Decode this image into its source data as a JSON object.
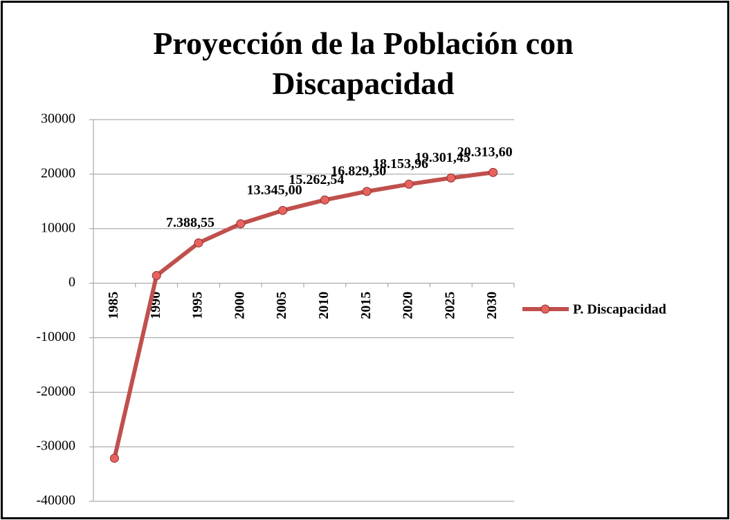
{
  "chart_data": {
    "type": "line",
    "title": "Proyección de la Población con Discapacidad",
    "categories": [
      "1985",
      "1990",
      "1995",
      "2000",
      "2005",
      "2010",
      "2015",
      "2020",
      "2025",
      "2030"
    ],
    "series": [
      {
        "name": "P. Discapacidad",
        "color": "#c0504d",
        "values": [
          -32100,
          1400,
          7388.55,
          10900,
          13345.0,
          15262.54,
          16829.3,
          18153.96,
          19301.45,
          20313.6
        ],
        "value_labels": [
          null,
          null,
          "7.388,55",
          null,
          "13.345,00",
          "15.262,54",
          "16.829,30",
          "18.153,96",
          "19.301,45",
          "20.313,60"
        ]
      }
    ],
    "ylim": [
      -40000,
      30000
    ],
    "yticks": [
      -40000,
      -30000,
      -20000,
      -10000,
      0,
      10000,
      20000,
      30000
    ],
    "grid": true,
    "legend": "right"
  }
}
